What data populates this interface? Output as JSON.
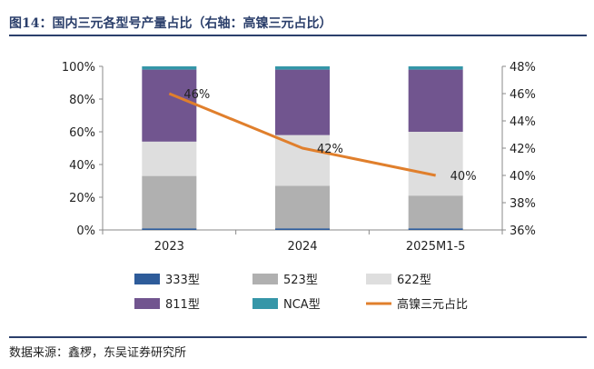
{
  "figure": {
    "title": "图14：国内三元各型号产量占比（右轴：高镍三元占比）",
    "source": "数据来源：鑫椤，东吴证券研究所"
  },
  "chart_data": {
    "type": "bar",
    "stacked": true,
    "categories": [
      "2023",
      "2024",
      "2025M1-5"
    ],
    "series": [
      {
        "name": "333型",
        "color": "#2e5c9a",
        "values": [
          1,
          1,
          1
        ]
      },
      {
        "name": "523型",
        "color": "#b0b0b0",
        "values": [
          32,
          26,
          20
        ]
      },
      {
        "name": "622型",
        "color": "#dedede",
        "values": [
          21,
          31,
          39
        ]
      },
      {
        "name": "811型",
        "color": "#71558f",
        "values": [
          44,
          40,
          38
        ]
      },
      {
        "name": "NCA型",
        "color": "#3596a8",
        "values": [
          2,
          2,
          2
        ]
      }
    ],
    "line": {
      "name": "高镍三元占比",
      "color": "#e07f2c",
      "axis": "right",
      "values": [
        46,
        42,
        40
      ],
      "labels": [
        "46%",
        "42%",
        "40%"
      ]
    },
    "ylim": [
      0,
      100
    ],
    "yticks": [
      "0%",
      "20%",
      "40%",
      "60%",
      "80%",
      "100%"
    ],
    "y2lim": [
      36,
      48
    ],
    "y2ticks": [
      "36%",
      "38%",
      "40%",
      "42%",
      "44%",
      "46%",
      "48%"
    ],
    "legend": "bottom",
    "grid": false
  }
}
